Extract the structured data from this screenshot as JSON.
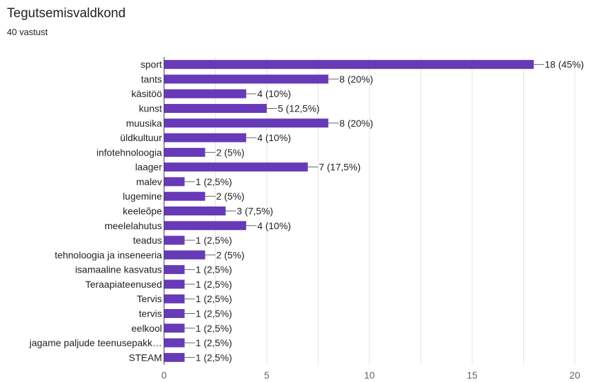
{
  "title": "Tegutsemisvaldkond",
  "subtitle": "40 vastust",
  "chart_data": {
    "type": "bar",
    "orientation": "horizontal",
    "title": "Tegutsemisvaldkond",
    "subtitle": "40 vastust",
    "categories": [
      "sport",
      "tants",
      "käsitöö",
      "kunst",
      "muusika",
      "üldkultuur",
      "infotehnoloogia",
      "laager",
      "malev",
      "lugemine",
      "keeleõpe",
      "meelelahutus",
      "teadus",
      "tehnoloogia ja inseneeria",
      "isamaaline kasvatus",
      "Teraapiateenused",
      "Tervis",
      "tervis",
      "eelkool",
      "jagame paljude teenusepakk…",
      "STEAM"
    ],
    "values": [
      18,
      8,
      4,
      5,
      8,
      4,
      2,
      7,
      1,
      2,
      3,
      4,
      1,
      2,
      1,
      1,
      1,
      1,
      1,
      1,
      1
    ],
    "value_labels": [
      "18 (45%)",
      "8 (20%)",
      "4 (10%)",
      "5 (12,5%)",
      "8 (20%)",
      "4 (10%)",
      "2 (5%)",
      "7 (17,5%)",
      "1 (2,5%)",
      "2 (5%)",
      "3 (7,5%)",
      "4 (10%)",
      "1 (2,5%)",
      "2 (5%)",
      "1 (2,5%)",
      "1 (2,5%)",
      "1 (2,5%)",
      "1 (2,5%)",
      "1 (2,5%)",
      "1 (2,5%)",
      "1 (2,5%)"
    ],
    "xlim": [
      0,
      20
    ],
    "xticks": [
      0,
      5,
      10,
      15,
      20
    ],
    "xlabel": "",
    "ylabel": "",
    "grid": true,
    "legend": "none",
    "bar_color": "#673ab7",
    "grid_color": "#e3e3e3",
    "axis_color": "#333333"
  }
}
